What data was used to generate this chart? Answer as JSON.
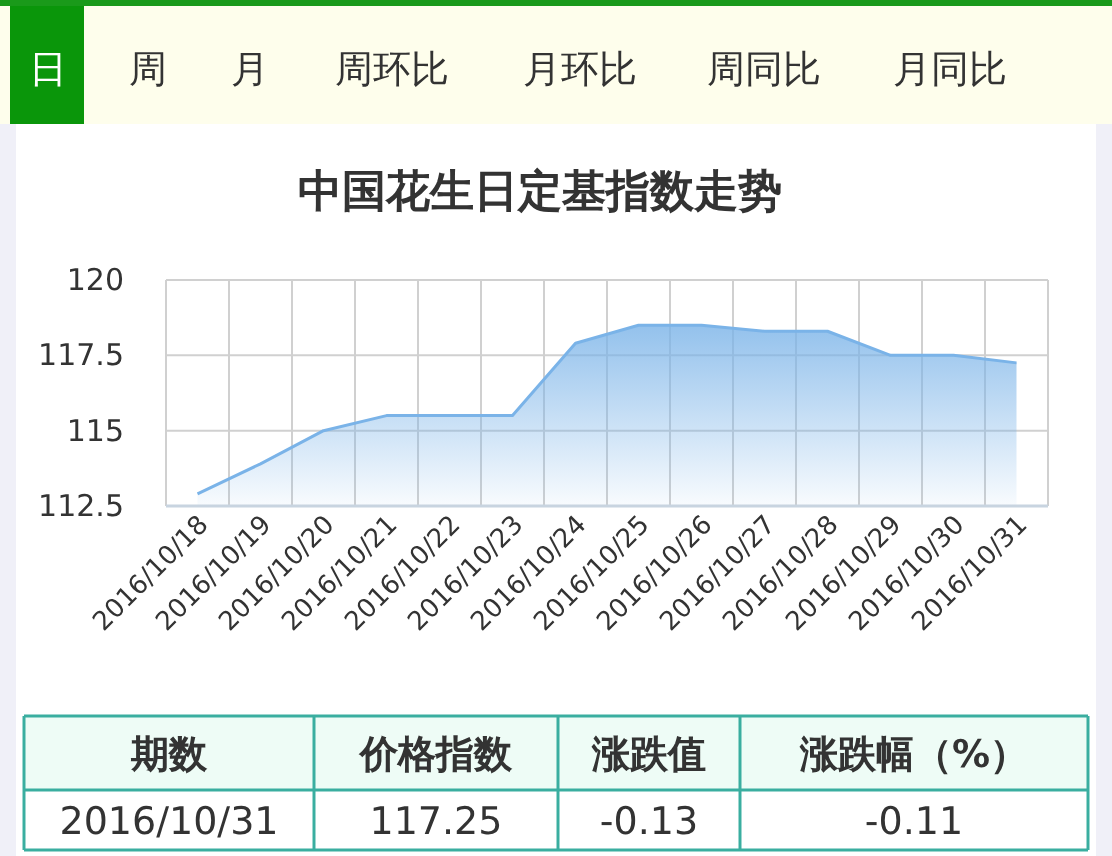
{
  "chart_data": [
    {
      "type": "other",
      "annotations": [
        "日",
        "周",
        "月",
        "周环比",
        "月环比",
        "周同比",
        "月同比"
      ]
    },
    {
      "type": "area",
      "title": "中国花生日定基指数走势",
      "categories": [
        "2016/10/18",
        "2016/10/19",
        "2016/10/20",
        "2016/10/21",
        "2016/10/22",
        "2016/10/23",
        "2016/10/24",
        "2016/10/25",
        "2016/10/26",
        "2016/10/27",
        "2016/10/28",
        "2016/10/29",
        "2016/10/30",
        "2016/10/31"
      ],
      "values": [
        112.9,
        113.9,
        115.0,
        115.5,
        115.5,
        115.5,
        117.9,
        118.5,
        118.5,
        118.3,
        118.3,
        117.5,
        117.5,
        117.25
      ],
      "color": "#7ab3e8",
      "ylim": [
        112.5,
        120
      ],
      "yticks": [
        112.5,
        115,
        117.5,
        120
      ],
      "grid": true
    },
    {
      "type": "other",
      "annotations": [
        "期数",
        "价格指数",
        "涨跌值",
        "涨跌幅（%）",
        "2016/10/31",
        "117.25",
        "-0.13",
        "-0.11"
      ]
    }
  ]
}
